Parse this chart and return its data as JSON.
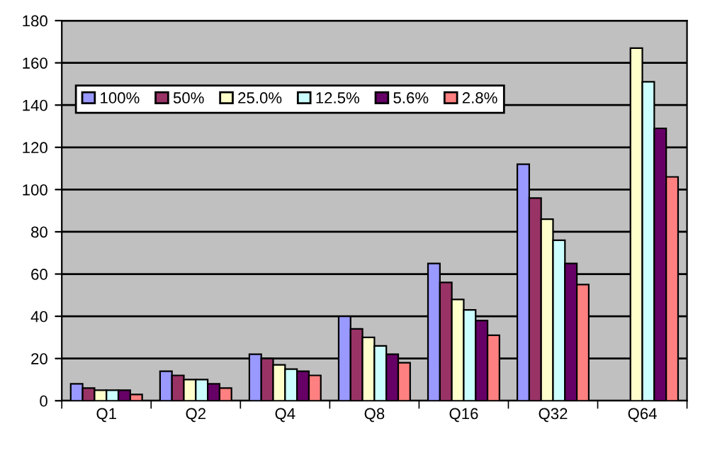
{
  "chart_data": {
    "type": "bar",
    "categories": [
      "Q1",
      "Q2",
      "Q4",
      "Q8",
      "Q16",
      "Q32",
      "Q64"
    ],
    "series": [
      {
        "name": "100%",
        "color": "#9999ff",
        "values": [
          8,
          14,
          22,
          40,
          65,
          112,
          null
        ]
      },
      {
        "name": "50%",
        "color": "#993366",
        "values": [
          6,
          12,
          20,
          34,
          56,
          96,
          null
        ]
      },
      {
        "name": "25.0%",
        "color": "#ffffcc",
        "values": [
          5,
          10,
          17,
          30,
          48,
          86,
          167
        ]
      },
      {
        "name": "12.5%",
        "color": "#ccffff",
        "values": [
          5,
          10,
          15,
          26,
          43,
          76,
          151
        ]
      },
      {
        "name": "5.6%",
        "color": "#660066",
        "values": [
          5,
          8,
          14,
          22,
          38,
          65,
          129
        ]
      },
      {
        "name": "2.8%",
        "color": "#ff8080",
        "values": [
          3,
          6,
          12,
          18,
          31,
          55,
          106
        ]
      }
    ],
    "ylim": [
      0,
      180
    ],
    "yticks": [
      0,
      20,
      40,
      60,
      80,
      100,
      120,
      140,
      160,
      180
    ],
    "grid": "y",
    "legend": "top left"
  }
}
